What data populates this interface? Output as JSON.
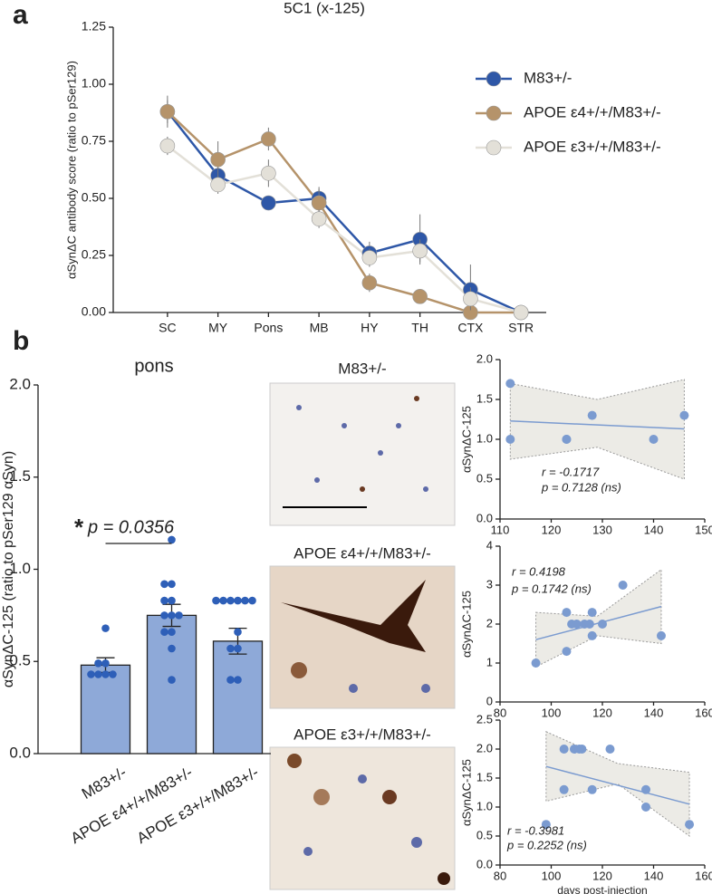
{
  "panel_labels": [
    "a",
    "b"
  ],
  "images": [
    {
      "label": "M83+/-"
    },
    {
      "label": "APOE ε4+/+/M83+/-"
    },
    {
      "label": "APOE ε3+/+/M83+/-"
    }
  ],
  "chart_data": [
    {
      "type": "line",
      "title": "5C1 (x-125)",
      "ylabel": "αSynΔC antibody score (ratio to pSer129)",
      "categories": [
        "SC",
        "MY",
        "Pons",
        "MB",
        "HY",
        "TH",
        "CTX",
        "STR"
      ],
      "ylim": [
        0,
        1.25
      ],
      "yticks": [
        {
          "value": 0,
          "label": "0.00"
        },
        0.25,
        {
          "value": 0.5,
          "label": "0.50"
        },
        0.75,
        {
          "value": 1,
          "label": "1.00"
        },
        1.25
      ],
      "series": [
        {
          "name": "M83+/-",
          "color": "#2e57a7",
          "values": [
            0.88,
            0.6,
            0.48,
            0.5,
            0.26,
            0.32,
            0.1,
            0.0
          ],
          "errors": [
            0.05,
            0.04,
            0.03,
            0.04,
            0.05,
            0.11,
            0.11,
            0.0
          ]
        },
        {
          "name": "APOE ε4+/+/M83+/-",
          "color": "#b5936a",
          "values": [
            0.88,
            0.67,
            0.76,
            0.48,
            0.13,
            0.07,
            0.0,
            0.0
          ],
          "errors": [
            0.07,
            0.08,
            0.05,
            0.07,
            0.04,
            0.02,
            0.0,
            0.0
          ]
        },
        {
          "name": "APOE ε3+/+/M83+/-",
          "color": "#e3e0d8",
          "values": [
            0.73,
            0.56,
            0.61,
            0.41,
            0.24,
            0.27,
            0.06,
            0.0
          ],
          "errors": [
            0.04,
            0.04,
            0.06,
            0.04,
            0.04,
            0.05,
            0.05,
            0.0
          ]
        }
      ]
    },
    {
      "type": "bar",
      "title": "pons",
      "ylabel": "αSynΔC-125 (ratio to pSer129 αSyn)",
      "categories": [
        "M83+/-",
        "APOE ε4+/+/M83+/-",
        "APOE ε3+/+/M83+/-"
      ],
      "values": [
        0.48,
        0.75,
        0.61
      ],
      "errors": [
        0.04,
        0.06,
        0.07
      ],
      "color": "#8ea9d8",
      "point_color": "#2e5fb8",
      "points": [
        [
          0.68,
          0.49,
          0.49,
          0.43,
          0.43,
          0.43,
          0.43
        ],
        [
          1.16,
          0.92,
          0.92,
          0.83,
          0.83,
          0.75,
          0.75,
          0.75,
          0.66,
          0.66,
          0.57,
          0.4
        ],
        [
          0.83,
          0.83,
          0.83,
          0.83,
          0.83,
          0.83,
          0.66,
          0.57,
          0.57,
          0.4,
          0.4
        ]
      ],
      "ylim": [
        0,
        2
      ],
      "yticks": [
        {
          "value": 0,
          "label": "0.0"
        },
        0.5,
        {
          "value": 1,
          "label": "1.0"
        },
        1.5,
        {
          "value": 2,
          "label": "2.0"
        }
      ],
      "significance_mark": "*",
      "annotation": "p = 0.0356"
    },
    {
      "type": "scatter",
      "ylabel": "αSynΔC-125",
      "color": "#7b9bd0",
      "x": [
        112,
        112,
        123,
        123,
        128,
        140,
        146
      ],
      "values": [
        1.7,
        1.0,
        1.0,
        1.0,
        1.3,
        1.0,
        1.3
      ],
      "fit_x": [
        112,
        146
      ],
      "fit_y": [
        1.23,
        1.13
      ],
      "ci_x": [
        112,
        129,
        146
      ],
      "ci_upper": [
        1.7,
        1.5,
        1.75
      ],
      "ci_lower": [
        0.75,
        0.9,
        0.5
      ],
      "xlim": [
        110,
        150
      ],
      "xticks": [
        110,
        120,
        130,
        140,
        150
      ],
      "ylim": [
        0,
        2
      ],
      "yticks": [
        {
          "value": 0,
          "label": "0.0"
        },
        0.5,
        {
          "value": 1,
          "label": "1.0"
        },
        1.5,
        {
          "value": 2,
          "label": "2.0"
        }
      ],
      "r_text": "r = -0.1717",
      "p_text": "p = 0.7128 (ns)"
    },
    {
      "type": "scatter",
      "ylabel": "αSynΔC-125",
      "color": "#7b9bd0",
      "x": [
        94,
        106,
        106,
        108,
        110,
        113,
        115,
        116,
        116,
        120,
        128,
        143
      ],
      "values": [
        1,
        2.3,
        1.3,
        2,
        2,
        2,
        2,
        2.3,
        1.7,
        2,
        3,
        1.7
      ],
      "fit_x": [
        94,
        143
      ],
      "fit_y": [
        1.6,
        2.45
      ],
      "ci_x": [
        94,
        118,
        143
      ],
      "ci_upper": [
        2.3,
        2.2,
        3.4
      ],
      "ci_lower": [
        0.9,
        1.7,
        1.5
      ],
      "xlim": [
        80,
        160
      ],
      "xticks": [
        80,
        100,
        120,
        140,
        160
      ],
      "ylim": [
        0,
        4
      ],
      "yticks": [
        0,
        1,
        2,
        3,
        4
      ],
      "r_text": "r = 0.4198",
      "p_text": "p = 0.1742 (ns)"
    },
    {
      "type": "scatter",
      "ylabel": "αSynΔC-125",
      "xlabel": "days post-injection",
      "color": "#7b9bd0",
      "x": [
        98,
        105,
        105,
        109,
        111,
        112,
        116,
        123,
        137,
        137,
        154
      ],
      "values": [
        0.7,
        2,
        1.3,
        2,
        2,
        2,
        1.3,
        2,
        1.3,
        1,
        0.7
      ],
      "fit_x": [
        98,
        154
      ],
      "fit_y": [
        1.7,
        1.05
      ],
      "ci_x": [
        98,
        126,
        154
      ],
      "ci_upper": [
        2.3,
        1.75,
        1.6
      ],
      "ci_lower": [
        1.1,
        1.4,
        0.5
      ],
      "xlim": [
        80,
        160
      ],
      "xticks": [
        80,
        100,
        120,
        140,
        160
      ],
      "ylim": [
        0,
        2.5
      ],
      "yticks": [
        {
          "value": 0,
          "label": "0.0"
        },
        0.5,
        {
          "value": 1,
          "label": "1.0"
        },
        1.5,
        {
          "value": 2,
          "label": "2.0"
        },
        2.5
      ],
      "r_text": "r = -0.3981",
      "p_text": "p = 0.2252 (ns)"
    }
  ]
}
